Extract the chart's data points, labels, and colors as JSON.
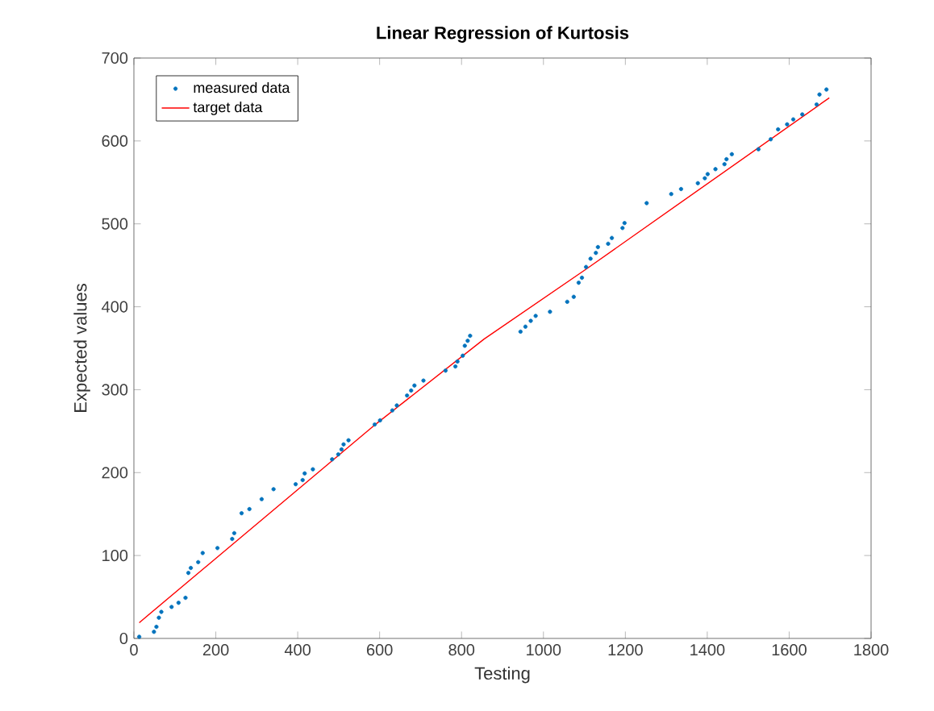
{
  "chart_data": {
    "type": "scatter",
    "title": "Linear Regression of Kurtosis",
    "xlabel": "Testing",
    "ylabel": "Expected values",
    "xlim": [
      0,
      1800
    ],
    "ylim": [
      0,
      700
    ],
    "xticks": [
      0,
      200,
      400,
      600,
      800,
      1000,
      1200,
      1400,
      1600,
      1800
    ],
    "yticks": [
      0,
      100,
      200,
      300,
      400,
      500,
      600,
      700
    ],
    "grid": false,
    "legend": "top left",
    "series": [
      {
        "name": "measured data",
        "color": "#0072bd",
        "marker": "circle",
        "x": [
          13,
          49,
          55,
          61,
          67,
          92,
          109,
          126,
          133,
          139,
          157,
          168,
          204,
          240,
          245,
          263,
          282,
          312,
          341,
          395,
          412,
          417,
          437,
          484,
          499,
          507,
          512,
          524,
          588,
          601,
          631,
          642,
          667,
          677,
          685,
          707,
          761,
          785,
          790,
          803,
          808,
          815,
          821,
          944,
          956,
          969,
          981,
          1016,
          1058,
          1074,
          1086,
          1094,
          1104,
          1115,
          1128,
          1133,
          1158,
          1167,
          1193,
          1198,
          1252,
          1312,
          1336,
          1377,
          1394,
          1401,
          1420,
          1442,
          1447,
          1460,
          1525,
          1555,
          1573,
          1595,
          1610,
          1632,
          1667,
          1674,
          1691
        ],
        "values": [
          2,
          8,
          14,
          25,
          32,
          38,
          43,
          49,
          79,
          85,
          92,
          103,
          109,
          120,
          127,
          151,
          156,
          168,
          180,
          186,
          191,
          199,
          204,
          216,
          222,
          228,
          234,
          239,
          258,
          263,
          275,
          281,
          293,
          299,
          305,
          311,
          323,
          328,
          334,
          341,
          353,
          359,
          365,
          370,
          376,
          383,
          389,
          394,
          406,
          412,
          429,
          435,
          448,
          458,
          465,
          472,
          476,
          483,
          495,
          501,
          525,
          536,
          542,
          549,
          555,
          560,
          566,
          572,
          578,
          584,
          590,
          602,
          614,
          620,
          626,
          632,
          644,
          656,
          662
        ]
      },
      {
        "name": "target data",
        "type": "line",
        "color": "#ff0000",
        "line_style": "solid",
        "marker": "none",
        "x": [
          13,
          592,
          855,
          1106,
          1698
        ],
        "values": [
          19,
          259,
          361,
          446,
          652
        ]
      }
    ]
  }
}
